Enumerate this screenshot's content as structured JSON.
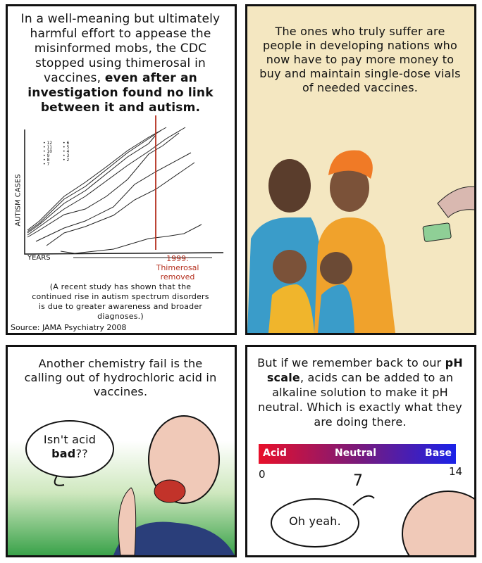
{
  "panel1": {
    "caption_parts": [
      "In a well-meaning but ultimately harmful effort to appease the misinformed mobs, the CDC stopped using thimerosal in vaccines, ",
      "even after an investigation found no link between it and autism."
    ],
    "y_label": "AUTISM CASES",
    "x_label": "YEARS",
    "annotation": "1999: Thimerosal removed",
    "legend": [
      "12",
      "11",
      "10",
      "9",
      "8",
      "7",
      "6",
      "5",
      "4",
      "3",
      "2"
    ],
    "note": "(A recent study has shown that the continued rise in autism spectrum disorders is due to greater awareness and broader diagnoses.)",
    "source": "Source: JAMA Psychiatry 2008",
    "line_color": "#b5301f"
  },
  "panel2": {
    "caption": "The ones who truly suffer are people in developing nations who now have to pay more money to buy and maintain single-dose vials of needed vaccines.",
    "background": "#f4e7c1"
  },
  "panel3": {
    "caption": "Another chemistry fail is the calling out of hydrochloric acid in vaccines.",
    "speech_parts": [
      "Isn't acid ",
      "bad",
      "??"
    ]
  },
  "panel4": {
    "caption_parts": [
      "But if we remember back to our ",
      "pH scale",
      ", acids can be added to an alkaline solution to make it pH neutral. Which is exactly what they are doing there."
    ],
    "scale": {
      "labels": [
        "Acid",
        "Neutral",
        "Base"
      ],
      "ticks": [
        "0",
        "7",
        "14"
      ],
      "colors": [
        "#e8102a",
        "#7a1a7a",
        "#1a22e8"
      ]
    },
    "speech": "Oh yeah."
  }
}
